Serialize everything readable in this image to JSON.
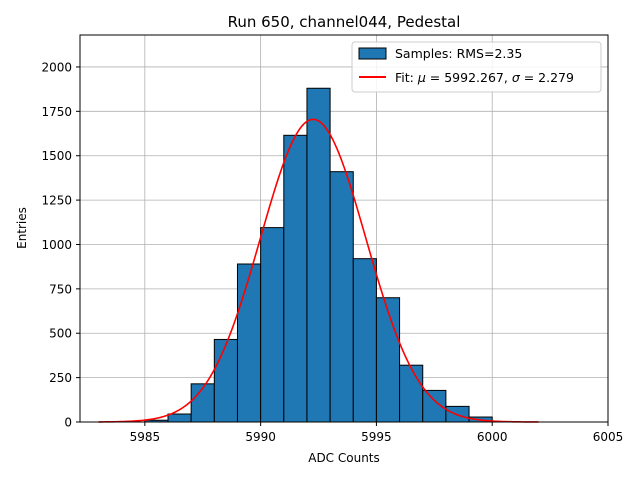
{
  "chart_data": {
    "type": "bar",
    "title": "Run 650, channel044, Pedestal",
    "xlabel": "ADC Counts",
    "ylabel": "Entries",
    "xlim": [
      5982.2,
      6005.0
    ],
    "ylim": [
      0,
      2180
    ],
    "xticks": [
      5985,
      5990,
      5995,
      6000,
      6005
    ],
    "yticks": [
      0,
      250,
      500,
      750,
      1000,
      1250,
      1500,
      1750,
      2000
    ],
    "grid": true,
    "legend_position": "top-right",
    "bins": {
      "edges": [
        5985,
        5986,
        5987,
        5988,
        5989,
        5990,
        5991,
        5992,
        5993,
        5994,
        5995,
        5996,
        5997,
        5998,
        5999,
        6000
      ],
      "counts": [
        10,
        45,
        215,
        465,
        890,
        1095,
        1615,
        1880,
        1410,
        920,
        700,
        320,
        178,
        88,
        28
      ],
      "label": "Samples: RMS=2.35",
      "color": "#1f77b4",
      "edgecolor": "#000000"
    },
    "fit": {
      "label_prefix": "Fit: ",
      "mu_symbol": "μ",
      "mu_text": " = 5992.267, ",
      "sigma_symbol": "σ",
      "sigma_text": " = 2.279",
      "mu": 5992.267,
      "sigma": 2.279,
      "amplitude": 1705,
      "x_range": [
        5983,
        6002
      ],
      "color": "#ff0000"
    }
  }
}
